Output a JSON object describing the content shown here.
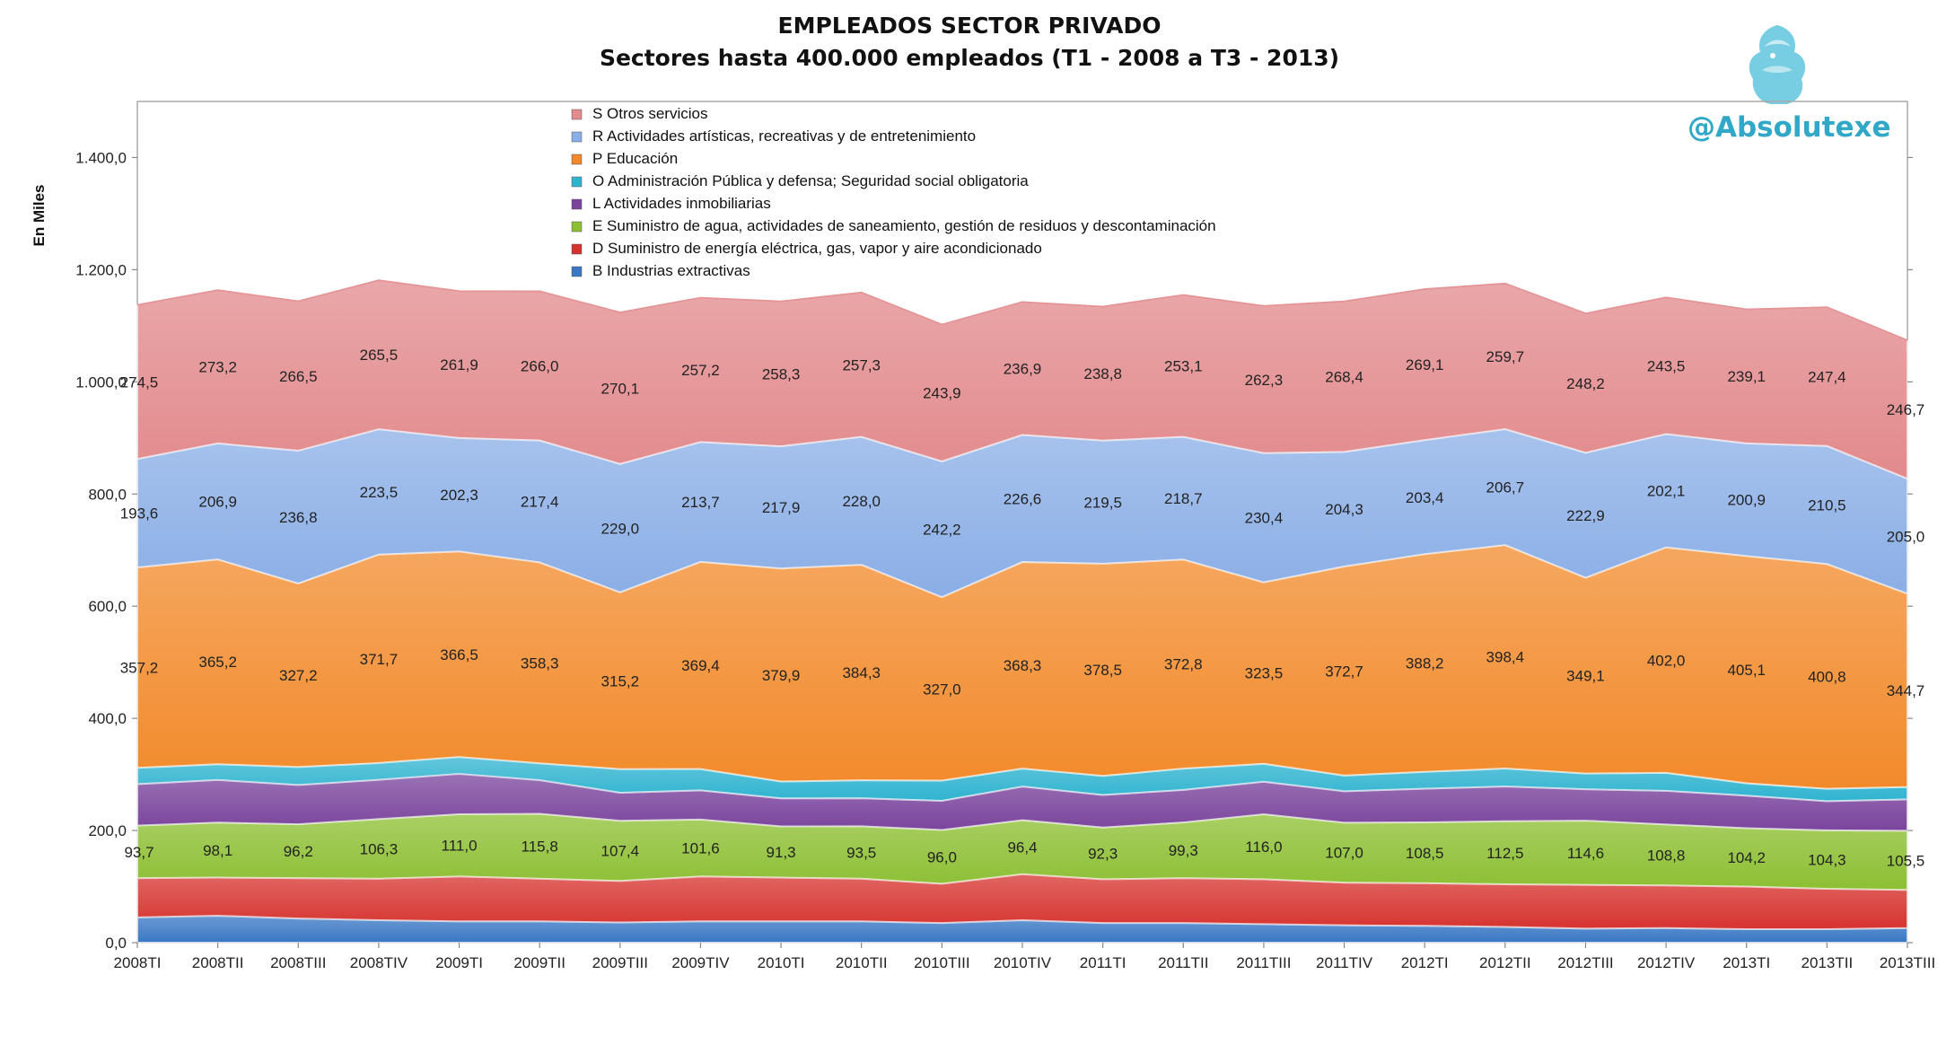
{
  "title": "EMPLEADOS SECTOR PRIVADO",
  "subtitle": "Sectores hasta 400.000 empleados (T1 - 2008 a T3 - 2013)",
  "brand": "@Absolutexe",
  "chart_data": {
    "type": "area",
    "stacked": true,
    "ylabel": "En Miles",
    "ylim": [
      0,
      1500
    ],
    "yticks": [
      "0,0",
      "200,0",
      "400,0",
      "600,0",
      "800,0",
      "1.000,0",
      "1.200,0",
      "1.400,0"
    ],
    "categories": [
      "2008TI",
      "2008TII",
      "2008TIII",
      "2008TIV",
      "2009TI",
      "2009TII",
      "2009TIII",
      "2009TIV",
      "2010TI",
      "2010TII",
      "2010TIII",
      "2010TIV",
      "2011TI",
      "2011TII",
      "2011TIII",
      "2011TIV",
      "2012TI",
      "2012TII",
      "2012TIII",
      "2012TIV",
      "2013TI",
      "2013TII",
      "2013TIII"
    ],
    "legend_position": "top-center",
    "series": [
      {
        "name": "B  Industrias extractivas",
        "color": "#3a78c4",
        "values": [
          45,
          48,
          43,
          40,
          38,
          38,
          36,
          38,
          38,
          38,
          35,
          40,
          35,
          35,
          33,
          31,
          30,
          28,
          25,
          26,
          24,
          24,
          26
        ]
      },
      {
        "name": "D  Suministro de energía eléctrica, gas, vapor y aire acondicionado",
        "color": "#d6332f",
        "values": [
          70,
          68,
          72,
          74,
          80,
          76,
          74,
          80,
          78,
          76,
          70,
          82,
          78,
          80,
          80,
          76,
          76,
          76,
          78,
          76,
          76,
          72,
          68
        ],
        "labels": []
      },
      {
        "name": "E  Suministro de agua, actividades de saneamiento, gestión de residuos y descontaminación",
        "color": "#8cbf32",
        "values": [
          93.7,
          98.1,
          96.2,
          106.3,
          111.0,
          115.8,
          107.4,
          101.6,
          91.3,
          93.5,
          96.0,
          96.4,
          92.3,
          99.3,
          116.0,
          107.0,
          108.5,
          112.5,
          114.6,
          108.8,
          104.2,
          104.3,
          105.5
        ],
        "labels": [
          "93,7",
          "98,1",
          "96,2",
          "106,3",
          "111,0",
          "115,8",
          "107,4",
          "101,6",
          "91,3",
          "93,5",
          "96,0",
          "96,4",
          "92,3",
          "99,3",
          "116,0",
          "107,0",
          "108,5",
          "112,5",
          "114,6",
          "108,8",
          "104,2",
          "104,3",
          "105,5"
        ]
      },
      {
        "name": "L  Actividades inmobiliarias",
        "color": "#7a449c",
        "values": [
          74,
          76,
          70,
          70,
          72,
          60,
          50,
          52,
          50,
          50,
          52,
          60,
          58,
          58,
          58,
          56,
          60,
          62,
          56,
          60,
          58,
          52,
          56
        ]
      },
      {
        "name": "O  Administración Pública y defensa; Seguridad social obligatoria",
        "color": "#2fb3cf",
        "values": [
          29,
          28,
          32,
          30,
          30,
          30,
          42,
          38,
          30,
          32,
          36,
          32,
          34,
          38,
          32,
          28,
          30,
          32,
          28,
          32,
          22,
          22,
          22
        ]
      },
      {
        "name": "P  Educación",
        "color": "#f28a2b",
        "values": [
          357.2,
          365.2,
          327.2,
          371.7,
          366.5,
          358.3,
          315.2,
          369.4,
          379.9,
          384.3,
          327.0,
          368.3,
          378.5,
          372.8,
          323.5,
          372.7,
          388.2,
          398.4,
          349.1,
          402.0,
          405.1,
          400.8,
          344.7
        ],
        "labels": [
          "357,2",
          "365,2",
          "327,2",
          "371,7",
          "366,5",
          "358,3",
          "315,2",
          "369,4",
          "379,9",
          "384,3",
          "327,0",
          "368,3",
          "378,5",
          "372,8",
          "323,5",
          "372,7",
          "388,2",
          "398,4",
          "349,1",
          "402,0",
          "405,1",
          "400,8",
          "344,7"
        ]
      },
      {
        "name": "R  Actividades artísticas, recreativas y de entretenimiento",
        "color": "#8aaee6",
        "values": [
          193.6,
          206.9,
          236.8,
          223.5,
          202.3,
          217.4,
          229.0,
          213.7,
          217.9,
          228.0,
          242.2,
          226.6,
          219.5,
          218.7,
          230.4,
          204.3,
          203.4,
          206.7,
          222.9,
          202.1,
          200.9,
          210.5,
          205.0
        ],
        "labels": [
          "193,6",
          "206,9",
          "236,8",
          "223,5",
          "202,3",
          "217,4",
          "229,0",
          "213,7",
          "217,9",
          "228,0",
          "242,2",
          "226,6",
          "219,5",
          "218,7",
          "230,4",
          "204,3",
          "203,4",
          "206,7",
          "222,9",
          "202,1",
          "200,9",
          "210,5",
          "205,0"
        ]
      },
      {
        "name": "S  Otros servicios",
        "color": "#e28a8c",
        "values": [
          274.5,
          273.2,
          266.5,
          265.5,
          261.9,
          266.0,
          270.1,
          257.2,
          258.3,
          257.3,
          243.9,
          236.9,
          238.8,
          253.1,
          262.3,
          268.4,
          269.1,
          259.7,
          248.2,
          243.5,
          239.1,
          247.4,
          246.7
        ],
        "labels": [
          "274,5",
          "273,2",
          "266,5",
          "265,5",
          "261,9",
          "266,0",
          "270,1",
          "257,2",
          "258,3",
          "257,3",
          "243,9",
          "236,9",
          "238,8",
          "253,1",
          "262,3",
          "268,4",
          "269,1",
          "259,7",
          "248,2",
          "243,5",
          "239,1",
          "247,4",
          "246,7"
        ]
      }
    ]
  }
}
